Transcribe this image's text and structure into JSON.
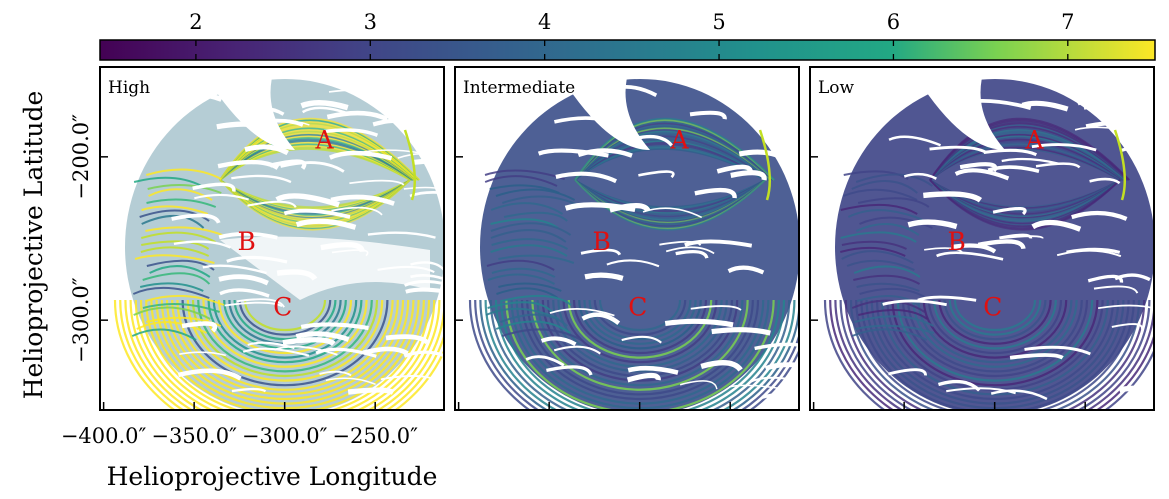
{
  "chart_data": {
    "type": "heatmap",
    "xlabel": "Helioprojective Longitude",
    "ylabel": "Helioprojective Latitude",
    "xticks": [
      "−400.0″",
      "−350.0″",
      "−300.0″",
      "−250.0″"
    ],
    "xtick_values": [
      -400,
      -350,
      -300,
      -250
    ],
    "yticks": [
      "−200.0″",
      "−300.0″"
    ],
    "ytick_values": [
      -200,
      -300
    ],
    "xlim": [
      -402,
      -212
    ],
    "ylim": [
      -355,
      -145
    ],
    "colorbar": {
      "ticks": [
        "2",
        "3",
        "4",
        "5",
        "6",
        "7"
      ],
      "tick_values": [
        2,
        3,
        4,
        5,
        6,
        7
      ],
      "range": [
        1.45,
        7.5
      ],
      "colormap": "viridis",
      "colors": [
        "#440154",
        "#3b528b",
        "#21908d",
        "#5dc863",
        "#fde725"
      ]
    },
    "panels": [
      {
        "title": "High",
        "regions": [
          {
            "label": "A",
            "x": -278,
            "y": -195
          },
          {
            "label": "B",
            "x": -321,
            "y": -257
          },
          {
            "label": "C",
            "x": -301,
            "y": -297
          }
        ]
      },
      {
        "title": "Intermediate",
        "regions": [
          {
            "label": "A",
            "x": -278,
            "y": -195
          },
          {
            "label": "B",
            "x": -321,
            "y": -257
          },
          {
            "label": "C",
            "x": -301,
            "y": -297
          }
        ]
      },
      {
        "title": "Low",
        "regions": [
          {
            "label": "A",
            "x": -278,
            "y": -195
          },
          {
            "label": "B",
            "x": -321,
            "y": -257
          },
          {
            "label": "C",
            "x": -301,
            "y": -297
          }
        ]
      }
    ]
  }
}
